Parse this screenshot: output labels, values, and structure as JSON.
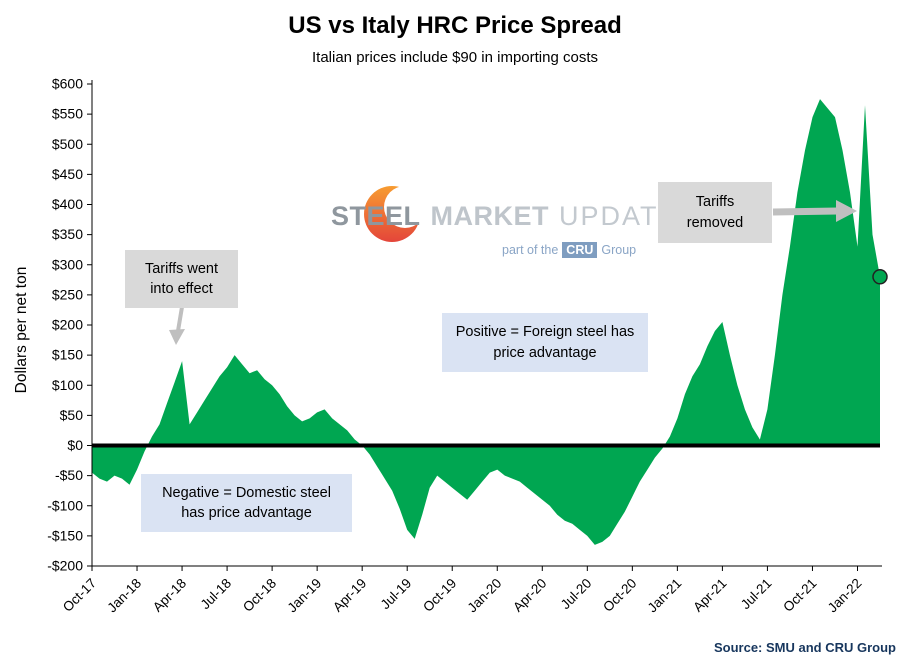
{
  "chart_data": {
    "type": "area",
    "title": "US vs Italy HRC Price Spread",
    "subtitle": "Italian prices include $90 in importing costs",
    "ylabel": "Dollars per net ton",
    "series_name": "US minus Italy HRC price spread, dollars per net ton",
    "x_description": "Semi-monthly samples from Oct-2017 to Feb-2022 (2 points per month)",
    "ylim": [
      -200,
      600
    ],
    "grid": false,
    "legend": "none",
    "colors": {
      "area": "#00a651",
      "zero_line": "#000000",
      "axis": "#000000",
      "arrow": "#bfbfbf"
    },
    "y_ticks": [
      {
        "v": 600,
        "label": "$600"
      },
      {
        "v": 550,
        "label": "$550"
      },
      {
        "v": 500,
        "label": "$500"
      },
      {
        "v": 450,
        "label": "$450"
      },
      {
        "v": 400,
        "label": "$400"
      },
      {
        "v": 350,
        "label": "$350"
      },
      {
        "v": 300,
        "label": "$300"
      },
      {
        "v": 250,
        "label": "$250"
      },
      {
        "v": 200,
        "label": "$200"
      },
      {
        "v": 150,
        "label": "$150"
      },
      {
        "v": 100,
        "label": "$100"
      },
      {
        "v": 50,
        "label": "$50"
      },
      {
        "v": 0,
        "label": "$0"
      },
      {
        "v": -50,
        "label": "-$50"
      },
      {
        "v": -100,
        "label": "-$100"
      },
      {
        "v": -150,
        "label": "-$150"
      },
      {
        "v": -200,
        "label": "-$200"
      }
    ],
    "x_ticks": [
      {
        "i": 0,
        "label": "Oct-17"
      },
      {
        "i": 6,
        "label": "Jan-18"
      },
      {
        "i": 12,
        "label": "Apr-18"
      },
      {
        "i": 18,
        "label": "Jul-18"
      },
      {
        "i": 24,
        "label": "Oct-18"
      },
      {
        "i": 30,
        "label": "Jan-19"
      },
      {
        "i": 36,
        "label": "Apr-19"
      },
      {
        "i": 42,
        "label": "Jul-19"
      },
      {
        "i": 48,
        "label": "Oct-19"
      },
      {
        "i": 54,
        "label": "Jan-20"
      },
      {
        "i": 60,
        "label": "Apr-20"
      },
      {
        "i": 66,
        "label": "Jul-20"
      },
      {
        "i": 72,
        "label": "Oct-20"
      },
      {
        "i": 78,
        "label": "Jan-21"
      },
      {
        "i": 84,
        "label": "Apr-21"
      },
      {
        "i": 90,
        "label": "Jul-21"
      },
      {
        "i": 96,
        "label": "Oct-21"
      },
      {
        "i": 102,
        "label": "Jan-22"
      }
    ],
    "values": [
      -45,
      -55,
      -60,
      -50,
      -55,
      -65,
      -40,
      -10,
      15,
      35,
      70,
      105,
      140,
      35,
      55,
      75,
      95,
      115,
      130,
      150,
      135,
      120,
      125,
      110,
      100,
      85,
      65,
      50,
      40,
      45,
      55,
      60,
      45,
      35,
      25,
      10,
      0,
      -15,
      -35,
      -55,
      -75,
      -105,
      -140,
      -155,
      -115,
      -70,
      -50,
      -60,
      -70,
      -80,
      -90,
      -75,
      -60,
      -45,
      -40,
      -50,
      -55,
      -60,
      -70,
      -80,
      -90,
      -100,
      -115,
      -125,
      -130,
      -140,
      -150,
      -165,
      -160,
      -150,
      -130,
      -110,
      -85,
      -60,
      -40,
      -20,
      -5,
      15,
      45,
      85,
      115,
      135,
      165,
      190,
      205,
      150,
      100,
      60,
      30,
      10,
      60,
      150,
      250,
      330,
      420,
      490,
      545,
      575,
      560,
      545,
      490,
      420,
      330,
      565,
      350,
      280
    ],
    "end_marker": {
      "index": 105,
      "value": 280
    }
  },
  "annotations": {
    "tariffs_effect": "Tariffs went into effect",
    "tariffs_removed": "Tariffs removed",
    "positive_note": "Positive = Foreign steel has price advantage",
    "negative_note": "Negative = Domestic steel has price advantage"
  },
  "watermark": {
    "brand_steel": "STEEL",
    "brand_market": "MARKET",
    "brand_update": "UPDATE",
    "tagline_prefix": "part of the",
    "tagline_cru": "CRU",
    "tagline_suffix": "Group"
  },
  "source": "Source: SMU and CRU Group"
}
